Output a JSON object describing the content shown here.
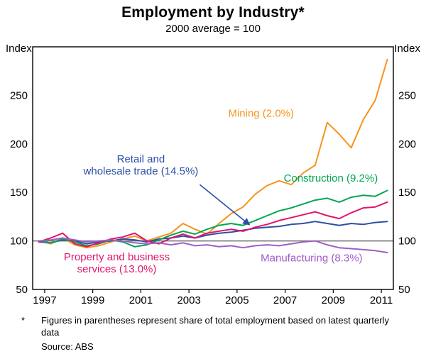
{
  "chart": {
    "title": "Employment by Industry*",
    "subtitle": "2000 average = 100",
    "y_axis_label_left": "Index",
    "y_axis_label_right": "Index"
  },
  "footnote": {
    "marker": "*",
    "text": "Figures in parentheses represent share of total employment based on latest quarterly data",
    "source": "Source: ABS"
  },
  "chart_data": {
    "type": "line",
    "title": "Employment by Industry*",
    "subtitle": "2000 average = 100",
    "xlabel": "",
    "ylabel": "Index",
    "xlim": [
      1996.5,
      2011.5
    ],
    "ylim": [
      50,
      300
    ],
    "yticks": [
      50,
      100,
      150,
      200,
      250
    ],
    "xticks": [
      1997,
      1999,
      2001,
      2003,
      2005,
      2007,
      2009,
      2011
    ],
    "reference_line": 100,
    "reference_line_color": "#6f6f6f",
    "axis_color": "#000000",
    "x": [
      1996.75,
      1997.25,
      1997.75,
      1998.25,
      1998.75,
      1999.25,
      1999.75,
      2000.25,
      2000.75,
      2001.25,
      2001.75,
      2002.25,
      2002.75,
      2003.25,
      2003.75,
      2004.25,
      2004.75,
      2005.25,
      2005.75,
      2006.25,
      2006.75,
      2007.25,
      2007.75,
      2008.25,
      2008.75,
      2009.25,
      2009.75,
      2010.25,
      2010.75,
      2011.25
    ],
    "series": [
      {
        "name": "Mining",
        "label": "Mining (2.0%)",
        "share_percent": 2.0,
        "color": "#f7941d",
        "values": [
          100,
          97,
          103,
          96,
          93,
          95,
          99,
          102,
          105,
          100,
          104,
          108,
          118,
          112,
          107,
          118,
          128,
          135,
          148,
          157,
          162,
          158,
          170,
          178,
          222,
          210,
          196,
          225,
          245,
          287
        ]
      },
      {
        "name": "Retail and wholesale trade",
        "label": "Retail and wholesale trade (14.5%)",
        "share_percent": 14.5,
        "color": "#2e4fa5",
        "values": [
          99,
          98,
          101,
          100,
          97,
          99,
          100,
          102,
          101,
          99,
          102,
          103,
          105,
          103,
          106,
          108,
          109,
          111,
          113,
          114,
          115,
          117,
          118,
          120,
          118,
          116,
          118,
          117,
          119,
          120
        ]
      },
      {
        "name": "Construction",
        "label": "Construction (9.2%)",
        "share_percent": 9.2,
        "color": "#00a651",
        "values": [
          100,
          98,
          102,
          99,
          95,
          97,
          101,
          99,
          94,
          96,
          101,
          106,
          110,
          107,
          112,
          116,
          118,
          116,
          121,
          126,
          131,
          134,
          138,
          142,
          144,
          140,
          145,
          147,
          146,
          152
        ]
      },
      {
        "name": "Property and business services",
        "label": "Property and business services (13.0%)",
        "share_percent": 13.0,
        "color": "#e0156b",
        "values": [
          99,
          103,
          108,
          97,
          94,
          98,
          102,
          104,
          108,
          100,
          97,
          103,
          107,
          103,
          108,
          110,
          112,
          110,
          114,
          117,
          121,
          124,
          127,
          130,
          126,
          123,
          129,
          134,
          135,
          140
        ]
      },
      {
        "name": "Manufacturing",
        "label": "Manufacturing (8.3%)",
        "share_percent": 8.3,
        "color": "#a05cc8",
        "values": [
          100,
          101,
          103,
          101,
          99,
          100,
          101,
          100,
          98,
          97,
          98,
          96,
          98,
          95,
          96,
          94,
          95,
          93,
          95,
          96,
          95,
          97,
          99,
          100,
          96,
          93,
          92,
          91,
          90,
          88
        ]
      }
    ],
    "annotations": [
      {
        "series": "Mining",
        "lines": [
          "Mining (2.0%)"
        ],
        "x": 2006.0,
        "y": 228,
        "anchor": "middle"
      },
      {
        "series": "Retail and wholesale trade",
        "lines": [
          "Retail and",
          "wholesale trade (14.5%)"
        ],
        "x": 2001.0,
        "y": 181,
        "anchor": "middle"
      },
      {
        "series": "Construction",
        "lines": [
          "Construction (9.2%)"
        ],
        "x": 2008.9,
        "y": 161,
        "anchor": "middle"
      },
      {
        "series": "Property and business services",
        "lines": [
          "Property and business",
          "services (13.0%)"
        ],
        "x": 2000.0,
        "y": 80,
        "anchor": "middle"
      },
      {
        "series": "Manufacturing",
        "lines": [
          "Manufacturing (8.3%)"
        ],
        "x": 2008.1,
        "y": 79,
        "anchor": "middle"
      }
    ],
    "arrow": {
      "series": "Retail and wholesale trade",
      "x1": 2003.45,
      "y1": 158,
      "x2": 2005.5,
      "y2": 117
    },
    "legend_position": "inline-annotations",
    "grid": false
  }
}
